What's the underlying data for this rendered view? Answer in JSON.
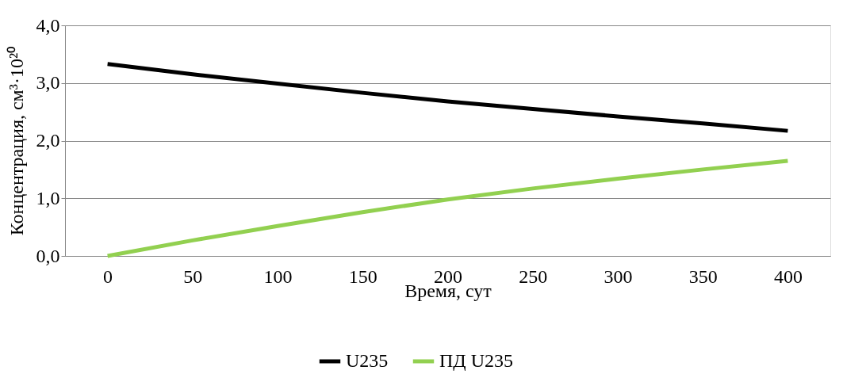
{
  "chart_data": {
    "type": "line",
    "xlabel": "Время, сут",
    "ylabel": "Концентрация,  см³·10²⁰",
    "categories": [
      "0",
      "50",
      "100",
      "150",
      "200",
      "250",
      "300",
      "350",
      "400"
    ],
    "series": [
      {
        "name": "U235",
        "color": "#000000",
        "values": [
          3.33,
          3.15,
          2.99,
          2.83,
          2.68,
          2.55,
          2.42,
          2.3,
          2.17
        ]
      },
      {
        "name": "ПД U235",
        "color": "#92d050",
        "values": [
          0,
          0.27,
          0.52,
          0.76,
          0.98,
          1.17,
          1.34,
          1.5,
          1.65
        ]
      }
    ],
    "ylim": [
      0,
      4
    ],
    "yticks": [
      {
        "value": 0,
        "label": "0,0"
      },
      {
        "value": 1,
        "label": "1,0"
      },
      {
        "value": 2,
        "label": "2,0"
      },
      {
        "value": 3,
        "label": "3,0"
      },
      {
        "value": 4,
        "label": "4,0"
      }
    ],
    "grid": "y",
    "legend": "bottom",
    "line_style": "solid",
    "marker": "none"
  }
}
